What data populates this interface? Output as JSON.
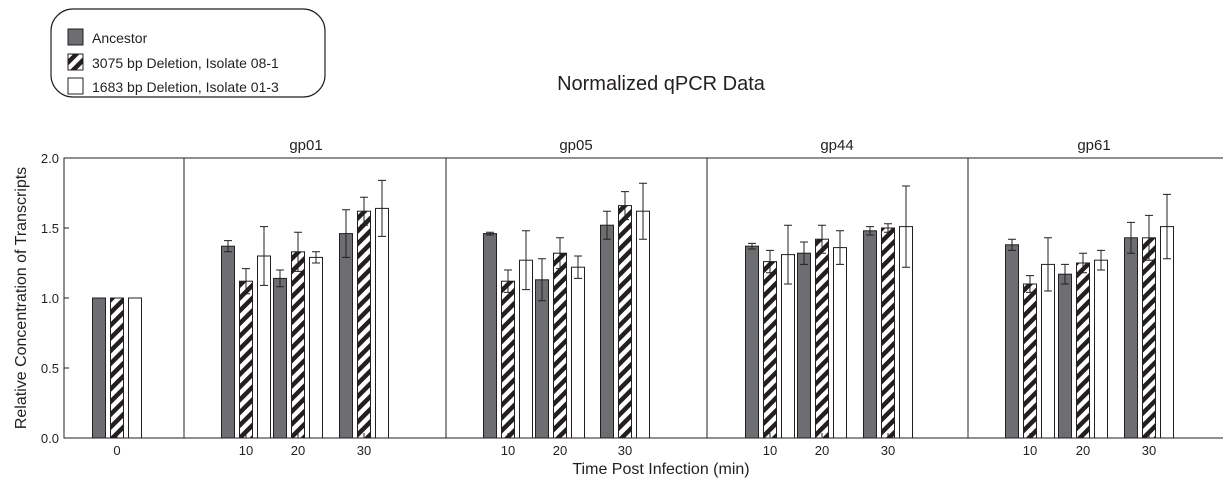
{
  "chart_data": {
    "type": "bar",
    "title": "Normalized qPCR Data",
    "xlabel": "Time Post Infection (min)",
    "ylabel": "Relative Concentration of Transcripts",
    "ylim": [
      0,
      2.0
    ],
    "yticks": [
      "0.0",
      "0.5",
      "1.0",
      "1.5",
      "2.0"
    ],
    "grid": false,
    "legend_position": "top-left",
    "colors": {
      "ancestor": "#6d6e71",
      "stripe": "#231f20",
      "open": "#ffffff",
      "axis": "#231f20"
    },
    "series": [
      {
        "name": "Ancestor",
        "pattern": "solid-gray"
      },
      {
        "name": "3075 bp Deletion, Isolate 08-1",
        "pattern": "diagonal-stripes"
      },
      {
        "name": "1683 bp Deletion, Isolate 01-3",
        "pattern": "open"
      }
    ],
    "panels": [
      {
        "title": "",
        "categories": [
          "0"
        ],
        "values": [
          [
            1.0
          ],
          [
            1.0
          ],
          [
            1.0
          ]
        ],
        "errors": [
          [
            0
          ],
          [
            0
          ],
          [
            0
          ]
        ]
      },
      {
        "title": "gp01",
        "categories": [
          "10",
          "20",
          "30"
        ],
        "values": [
          [
            1.37,
            1.14,
            1.46
          ],
          [
            1.12,
            1.33,
            1.62
          ],
          [
            1.3,
            1.29,
            1.64
          ]
        ],
        "errors": [
          [
            0.04,
            0.06,
            0.17
          ],
          [
            0.09,
            0.14,
            0.1
          ],
          [
            0.21,
            0.04,
            0.2
          ]
        ]
      },
      {
        "title": "gp05",
        "categories": [
          "10",
          "20",
          "30"
        ],
        "values": [
          [
            1.46,
            1.13,
            1.52
          ],
          [
            1.12,
            1.32,
            1.66
          ],
          [
            1.27,
            1.22,
            1.62
          ]
        ],
        "errors": [
          [
            0.01,
            0.15,
            0.1
          ],
          [
            0.08,
            0.11,
            0.1
          ],
          [
            0.21,
            0.08,
            0.2
          ]
        ]
      },
      {
        "title": "gp44",
        "categories": [
          "10",
          "20",
          "30"
        ],
        "values": [
          [
            1.37,
            1.32,
            1.48
          ],
          [
            1.26,
            1.42,
            1.5
          ],
          [
            1.31,
            1.36,
            1.51
          ]
        ],
        "errors": [
          [
            0.02,
            0.08,
            0.03
          ],
          [
            0.08,
            0.1,
            0.03
          ],
          [
            0.21,
            0.12,
            0.29
          ]
        ]
      },
      {
        "title": "gp61",
        "categories": [
          "10",
          "20",
          "30"
        ],
        "values": [
          [
            1.38,
            1.17,
            1.43
          ],
          [
            1.1,
            1.25,
            1.43
          ],
          [
            1.24,
            1.27,
            1.51
          ]
        ],
        "errors": [
          [
            0.04,
            0.07,
            0.11
          ],
          [
            0.06,
            0.07,
            0.16
          ],
          [
            0.19,
            0.07,
            0.23
          ]
        ]
      }
    ]
  }
}
